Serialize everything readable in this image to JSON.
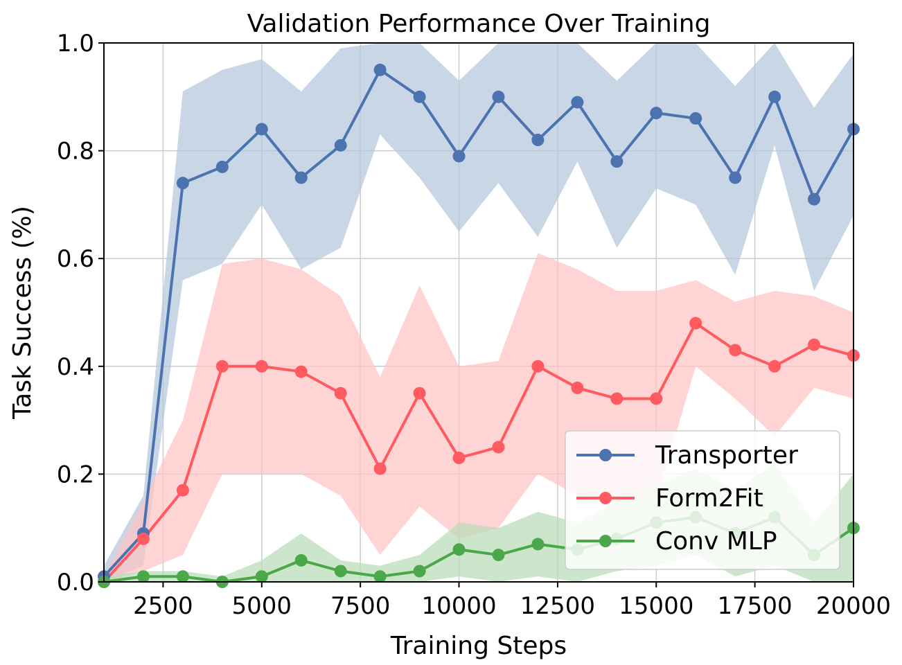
{
  "chart_data": {
    "type": "line",
    "title": "Validation Performance Over Training",
    "xlabel": "Training Steps",
    "ylabel": "Task Success (%)",
    "xlim": [
      1000,
      20000
    ],
    "ylim": [
      0.0,
      1.0
    ],
    "xticks": [
      2500,
      5000,
      7500,
      10000,
      12500,
      15000,
      17500,
      20000
    ],
    "yticks": [
      "0.0",
      "0.2",
      "0.4",
      "0.6",
      "0.8",
      "1.0"
    ],
    "grid": true,
    "legend_position": "lower right",
    "x": [
      1000,
      2000,
      3000,
      4000,
      5000,
      6000,
      7000,
      8000,
      9000,
      10000,
      11000,
      12000,
      13000,
      14000,
      15000,
      16000,
      17000,
      18000,
      19000,
      20000
    ],
    "series": [
      {
        "name": "Transporter",
        "color": "#4c72b0",
        "band_color": "#b3c6dc",
        "values": [
          0.01,
          0.09,
          0.74,
          0.77,
          0.84,
          0.75,
          0.81,
          0.95,
          0.9,
          0.79,
          0.9,
          0.82,
          0.89,
          0.78,
          0.87,
          0.86,
          0.75,
          0.9,
          0.71,
          0.84
        ],
        "lower": [
          0.0,
          0.03,
          0.56,
          0.59,
          0.7,
          0.58,
          0.62,
          0.83,
          0.75,
          0.65,
          0.74,
          0.64,
          0.78,
          0.62,
          0.73,
          0.7,
          0.57,
          0.81,
          0.54,
          0.68
        ],
        "upper": [
          0.03,
          0.16,
          0.91,
          0.95,
          0.97,
          0.91,
          0.99,
          1.0,
          1.0,
          0.93,
          1.0,
          1.0,
          1.0,
          0.93,
          1.0,
          1.0,
          0.92,
          1.0,
          0.88,
          0.98
        ]
      },
      {
        "name": "Form2Fit",
        "color": "#ff5a5f",
        "band_color": "#ffc4c4",
        "values": [
          0.0,
          0.08,
          0.17,
          0.4,
          0.4,
          0.39,
          0.35,
          0.21,
          0.35,
          0.23,
          0.25,
          0.4,
          0.36,
          0.34,
          0.34,
          0.48,
          0.43,
          0.4,
          0.44,
          0.42
        ],
        "lower": [
          0.0,
          0.02,
          0.05,
          0.2,
          0.2,
          0.2,
          0.16,
          0.05,
          0.14,
          0.08,
          0.1,
          0.2,
          0.16,
          0.15,
          0.15,
          0.4,
          0.34,
          0.27,
          0.36,
          0.34
        ],
        "upper": [
          0.01,
          0.15,
          0.3,
          0.59,
          0.6,
          0.58,
          0.53,
          0.38,
          0.55,
          0.4,
          0.41,
          0.61,
          0.58,
          0.54,
          0.54,
          0.56,
          0.52,
          0.54,
          0.53,
          0.5
        ]
      },
      {
        "name": "Conv MLP",
        "color": "#4aa74a",
        "band_color": "#b9dcb9",
        "values": [
          0.0,
          0.01,
          0.01,
          0.0,
          0.01,
          0.04,
          0.02,
          0.01,
          0.02,
          0.06,
          0.05,
          0.07,
          0.06,
          0.08,
          0.11,
          0.12,
          0.09,
          0.12,
          0.05,
          0.1
        ],
        "lower": [
          0.0,
          0.0,
          0.0,
          0.0,
          0.0,
          0.0,
          0.0,
          0.0,
          0.0,
          0.01,
          0.0,
          0.01,
          0.0,
          0.02,
          0.03,
          0.05,
          0.01,
          0.03,
          0.0,
          0.0
        ],
        "upper": [
          0.01,
          0.02,
          0.02,
          0.01,
          0.04,
          0.09,
          0.04,
          0.03,
          0.05,
          0.11,
          0.1,
          0.13,
          0.11,
          0.15,
          0.18,
          0.21,
          0.17,
          0.22,
          0.11,
          0.2
        ]
      }
    ]
  }
}
